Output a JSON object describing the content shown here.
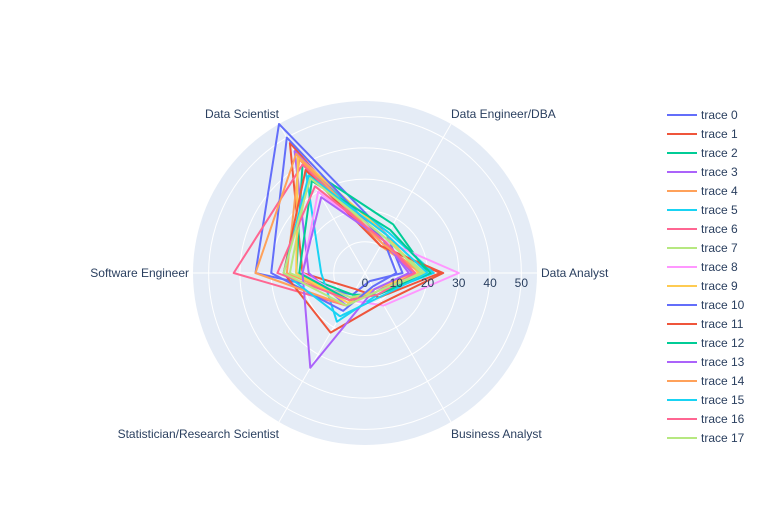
{
  "chart_data": {
    "type": "radar",
    "axes": [
      "Data Analyst",
      "Data Engineer/DBA",
      "Data Scientist",
      "Software Engineer",
      "Statistician/Research Scientist",
      "Business Analyst"
    ],
    "radial_ticks": [
      0,
      10,
      20,
      30,
      40,
      50
    ],
    "radial_range": [
      0,
      55
    ],
    "grid": true,
    "legend_position": "right",
    "series": [
      {
        "name": "trace 0",
        "color": "#636efa",
        "values": [
          12,
          14,
          55,
          35,
          8,
          3
        ]
      },
      {
        "name": "trace 1",
        "color": "#EF553B",
        "values": [
          24,
          10,
          48,
          20,
          6,
          9
        ]
      },
      {
        "name": "trace 2",
        "color": "#00cc96",
        "values": [
          20,
          18,
          40,
          22,
          8,
          8
        ]
      },
      {
        "name": "trace 3",
        "color": "#ab63fa",
        "values": [
          15,
          12,
          45,
          18,
          12,
          7
        ]
      },
      {
        "name": "trace 4",
        "color": "#FFA15A",
        "values": [
          18,
          10,
          42,
          25,
          10,
          6
        ]
      },
      {
        "name": "trace 5",
        "color": "#19d3f3",
        "values": [
          22,
          15,
          38,
          14,
          18,
          8
        ]
      },
      {
        "name": "trace 6",
        "color": "#FF6692",
        "values": [
          16,
          11,
          40,
          42,
          12,
          6
        ]
      },
      {
        "name": "trace 7",
        "color": "#B6E880",
        "values": [
          19,
          13,
          36,
          24,
          9,
          7
        ]
      },
      {
        "name": "trace 8",
        "color": "#FF97FF",
        "values": [
          30,
          12,
          30,
          20,
          10,
          12
        ]
      },
      {
        "name": "trace 9",
        "color": "#FECB52",
        "values": [
          17,
          14,
          43,
          22,
          11,
          6
        ]
      },
      {
        "name": "trace 10",
        "color": "#636efa",
        "values": [
          10,
          12,
          50,
          30,
          14,
          5
        ]
      },
      {
        "name": "trace 11",
        "color": "#EF553B",
        "values": [
          25,
          10,
          38,
          26,
          22,
          11
        ]
      },
      {
        "name": "trace 12",
        "color": "#00cc96",
        "values": [
          21,
          16,
          34,
          21,
          10,
          8
        ]
      },
      {
        "name": "trace 13",
        "color": "#ab63fa",
        "values": [
          14,
          12,
          28,
          20,
          35,
          6
        ]
      },
      {
        "name": "trace 14",
        "color": "#FFA15A",
        "values": [
          18,
          11,
          44,
          35,
          12,
          7
        ]
      },
      {
        "name": "trace 15",
        "color": "#19d3f3",
        "values": [
          20,
          14,
          36,
          26,
          16,
          9
        ]
      },
      {
        "name": "trace 16",
        "color": "#FF6692",
        "values": [
          16,
          12,
          32,
          28,
          10,
          8
        ]
      },
      {
        "name": "trace 17",
        "color": "#B6E880",
        "values": [
          18,
          13,
          35,
          26,
          12,
          7
        ]
      }
    ]
  }
}
